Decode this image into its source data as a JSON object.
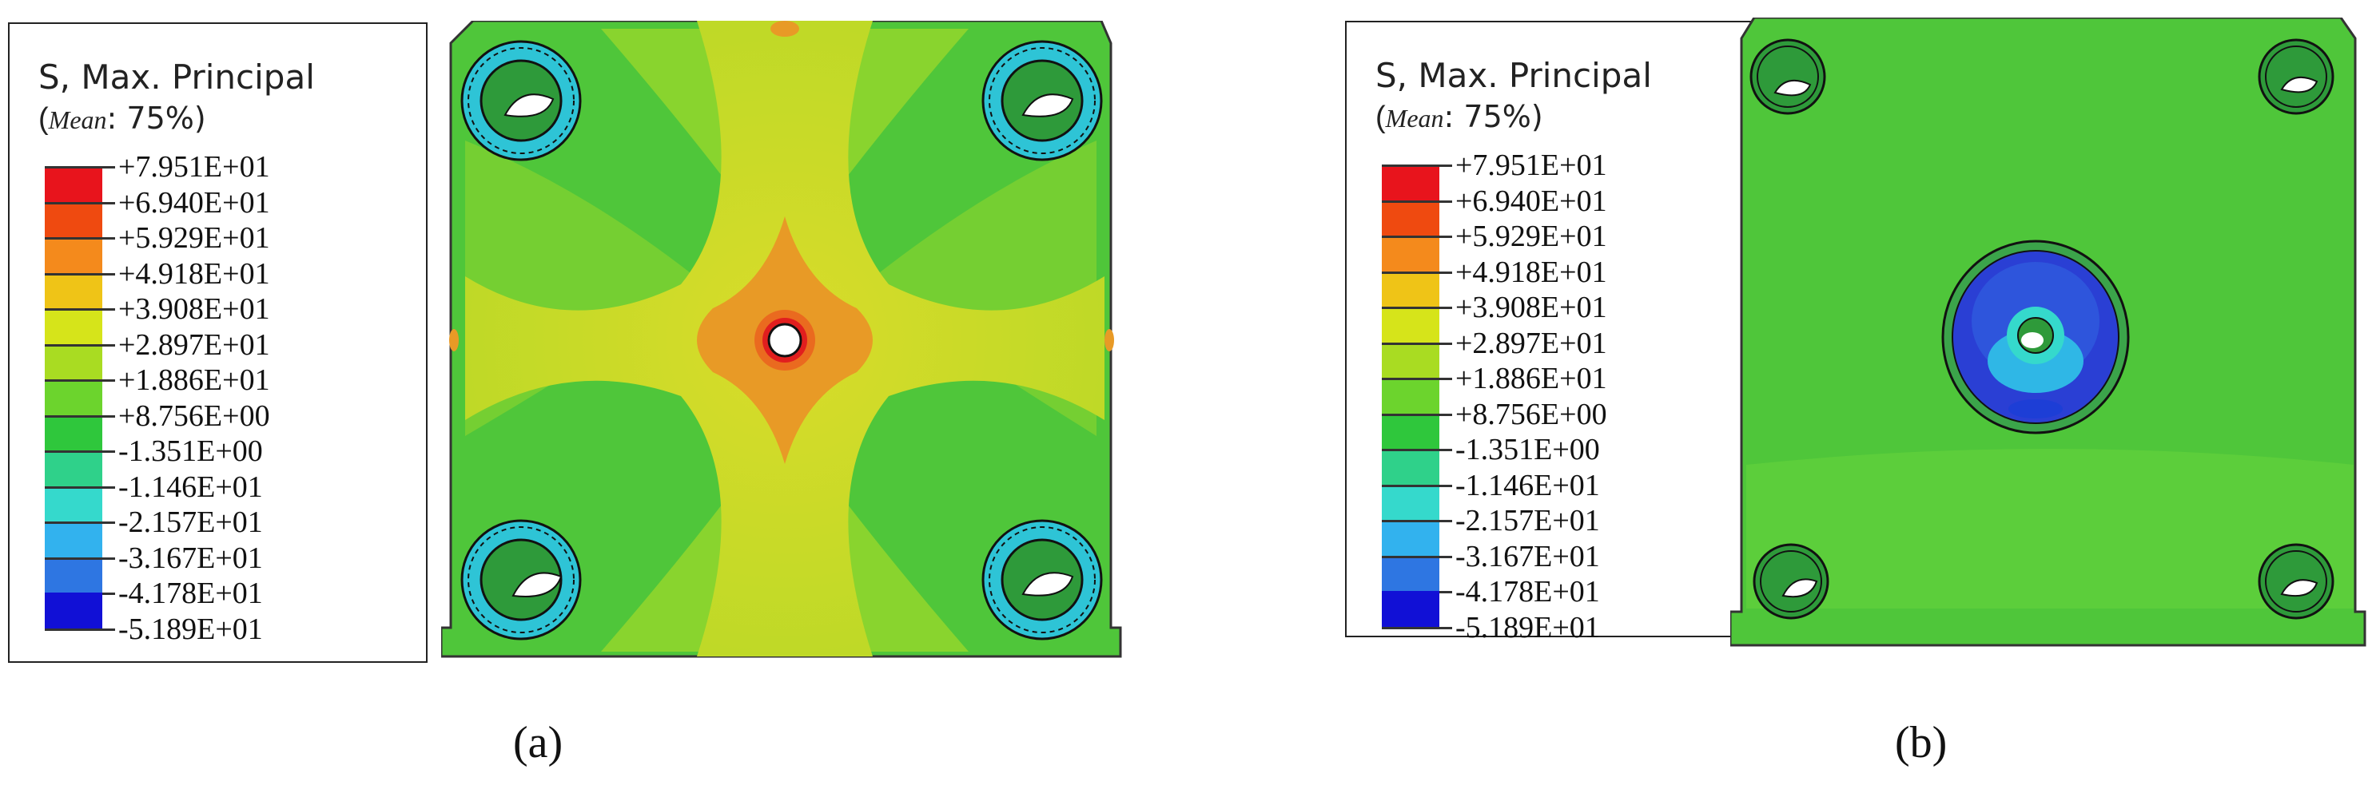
{
  "figure": {
    "panels": [
      {
        "caption": "(a)",
        "legend": {
          "title": "S, Max. Principal",
          "mean_label": "Mean",
          "mean_value": ": 75%)"
        }
      },
      {
        "caption": "(b)",
        "legend": {
          "title": "S, Max. Principal",
          "mean_label": "Mean",
          "mean_value": ": 75%)"
        }
      }
    ]
  },
  "scale": {
    "values": [
      "+7.951E+01",
      "+6.940E+01",
      "+5.929E+01",
      "+4.918E+01",
      "+3.908E+01",
      "+2.897E+01",
      "+1.886E+01",
      "+8.756E+00",
      "-1.351E+00",
      "-1.146E+01",
      "-2.157E+01",
      "-3.167E+01",
      "-4.178E+01",
      "-5.189E+01"
    ],
    "colors": [
      "#e8141c",
      "#ef4a10",
      "#f48a1c",
      "#efc417",
      "#d6e41a",
      "#a9dc22",
      "#6cd42d",
      "#2fc73c",
      "#2fd18a",
      "#35d9cc",
      "#32b2ee",
      "#2e76e2",
      "#1d3ed6",
      "#1110d6"
    ]
  },
  "colors": {
    "plate_green": "#52c93c",
    "plate_yellow": "#d7d729",
    "plate_orange": "#e89a26",
    "plate_red": "#e11e1e",
    "plate_blue": "#2a3fd4",
    "hole_bg": "#2e9a3a"
  }
}
